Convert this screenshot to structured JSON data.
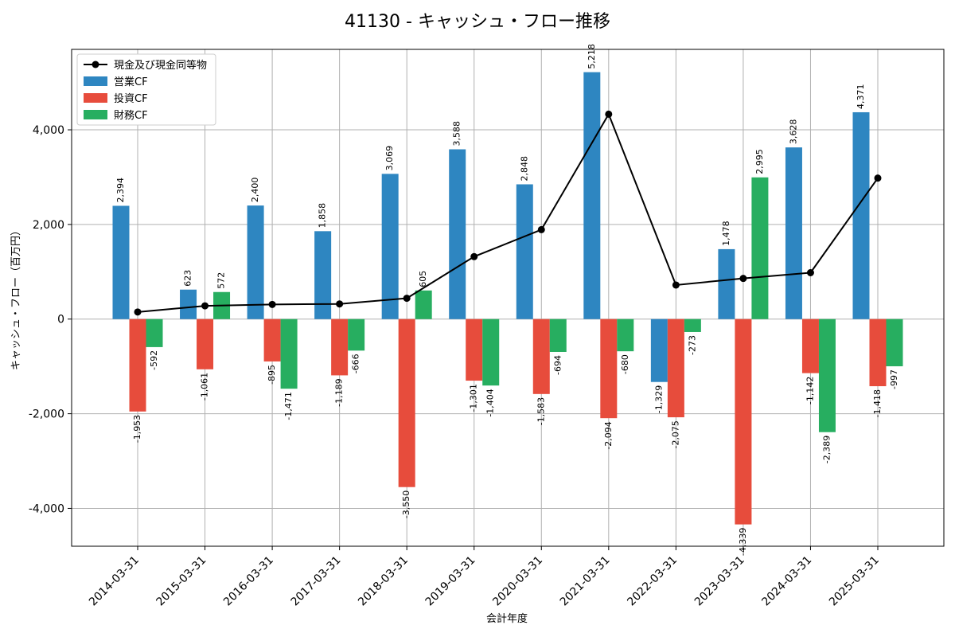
{
  "chart_data": {
    "type": "bar",
    "title": "41130 - キャッシュ・フロー推移",
    "xlabel": "会計年度",
    "ylabel": "キャッシュ・フロー（百万円）",
    "ylim": [
      -4800,
      5700
    ],
    "yticks": [
      -4000,
      -2000,
      0,
      2000,
      4000
    ],
    "ytick_labels": [
      "-4,000",
      "-2,000",
      "0",
      "2,000",
      "4,000"
    ],
    "grid": true,
    "legend_position": "top-left",
    "categories": [
      "2014-03-31",
      "2015-03-31",
      "2016-03-31",
      "2017-03-31",
      "2018-03-31",
      "2019-03-31",
      "2020-03-31",
      "2021-03-31",
      "2022-03-31",
      "2023-03-31",
      "2024-03-31",
      "2025-03-31"
    ],
    "series": [
      {
        "name": "営業CF",
        "kind": "bar",
        "color": "#2e86c1",
        "values": [
          2394,
          623,
          2400,
          1858,
          3069,
          3588,
          2848,
          5218,
          -1329,
          1478,
          3628,
          4371
        ],
        "labels": [
          "2,394",
          "623",
          "2,400",
          "1,858",
          "3,069",
          "3,588",
          "2,848",
          "5,218",
          "-1,329",
          "1,478",
          "3,628",
          "4,371"
        ]
      },
      {
        "name": "投資CF",
        "kind": "bar",
        "color": "#e74c3c",
        "values": [
          -1953,
          -1061,
          -895,
          -1189,
          -3550,
          -1301,
          -1583,
          -2094,
          -2075,
          -4339,
          -1142,
          -1418
        ],
        "labels": [
          "-1,953",
          "-1,061",
          "-895",
          "-1,189",
          "-3,550",
          "-1,301",
          "-1,583",
          "-2,094",
          "-2,075",
          "-4,339",
          "-1,142",
          "-1,418"
        ]
      },
      {
        "name": "財務CF",
        "kind": "bar",
        "color": "#27ae60",
        "values": [
          -592,
          572,
          -1471,
          -666,
          605,
          -1404,
          -694,
          -680,
          -273,
          2995,
          -2389,
          -997
        ],
        "labels": [
          "-592",
          "572",
          "-1,471",
          "-666",
          "605",
          "-1,404",
          "-694",
          "-680",
          "-273",
          "2,995",
          "-2,389",
          "-997"
        ]
      },
      {
        "name": "現金及び現金同等物",
        "kind": "line",
        "color": "#000000",
        "values": [
          150,
          280,
          310,
          320,
          440,
          1320,
          1890,
          4330,
          720,
          860,
          980,
          2980
        ]
      }
    ]
  }
}
